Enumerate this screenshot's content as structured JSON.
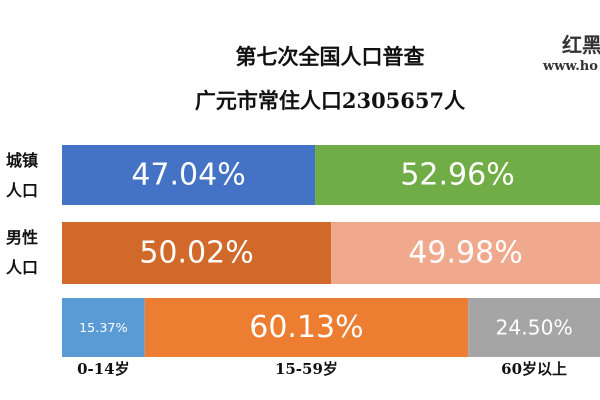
{
  "chart_data": {
    "type": "stacked_bar",
    "orientation": "horizontal",
    "title": [
      "第七次全国人口普查",
      "广元市常住人口2305657人"
    ],
    "watermark": [
      "红黑",
      "www.ho"
    ],
    "categories": [
      "城镇人口",
      "男性人口",
      null
    ],
    "xlim": [
      0,
      100
    ],
    "series": [
      {
        "name": "0-14岁",
        "colors": [
          "#4472c4",
          "#d0692a",
          "#5b9bd5"
        ],
        "values": [
          47.04,
          50.02,
          15.37
        ],
        "value_labels": [
          "47.04%",
          "50.02%",
          "15.37%"
        ]
      },
      {
        "name": "15-59岁",
        "colors": [
          "#70ad47",
          "#f0a98c",
          "#ed7d31"
        ],
        "values": [
          52.96,
          49.98,
          60.13
        ],
        "value_labels": [
          "52.96%",
          "49.98%",
          "60.13%"
        ]
      },
      {
        "name": "60岁以上",
        "colors": [
          null,
          null,
          "#a5a5a5"
        ],
        "values": [
          null,
          null,
          24.5
        ],
        "value_labels": [
          null,
          null,
          "24.50%"
        ]
      }
    ]
  }
}
